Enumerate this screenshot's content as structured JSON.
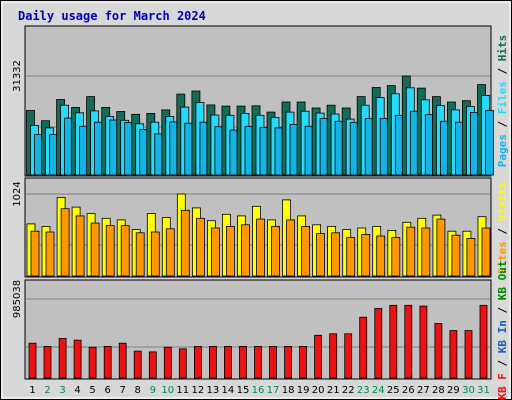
{
  "title": "Daily usage for March 2024",
  "colors": {
    "hits": "#136c58",
    "files": "#27d9fb",
    "pages": "#15b4e4",
    "visits": "#ffff00",
    "sites": "#ff9800",
    "kb": "#ee1111",
    "pane": "#c0c0c0",
    "frame": "#d8d8d8",
    "title": "#0000bb",
    "weekend": "#00884d"
  },
  "chart_data": [
    {
      "type": "bar",
      "title": "",
      "categories": [
        "1",
        "2",
        "3",
        "4",
        "5",
        "6",
        "7",
        "8",
        "9",
        "10",
        "11",
        "12",
        "13",
        "14",
        "15",
        "16",
        "17",
        "18",
        "19",
        "20",
        "21",
        "22",
        "23",
        "24",
        "25",
        "26",
        "27",
        "28",
        "29",
        "30",
        "31"
      ],
      "weekend_days": [
        "2",
        "3",
        "9",
        "10",
        "16",
        "17",
        "23",
        "24",
        "30",
        "31"
      ],
      "y_tick": "31332",
      "ymax": 31332,
      "ylabel_parts": [
        {
          "text": "Pages",
          "color": "#15b4e4"
        },
        {
          "text": " / ",
          "color": "#000000"
        },
        {
          "text": "Files",
          "color": "#27d9fb"
        },
        {
          "text": " / ",
          "color": "#000000"
        },
        {
          "text": "Hits",
          "color": "#136c58"
        }
      ],
      "series": [
        {
          "name": "Hits",
          "values": [
            20400,
            17200,
            23900,
            21400,
            24800,
            21400,
            20100,
            19200,
            19500,
            20600,
            25600,
            26600,
            22200,
            21800,
            21800,
            21900,
            19900,
            23100,
            23100,
            21200,
            22100,
            21200,
            24800,
            27700,
            28300,
            31332,
            27500,
            24800,
            23100,
            23500,
            28600
          ]
        },
        {
          "name": "Files",
          "values": [
            15700,
            14900,
            22100,
            19700,
            20300,
            18500,
            17300,
            16200,
            16700,
            18500,
            21500,
            22900,
            19000,
            18900,
            19500,
            18900,
            18200,
            19900,
            20200,
            19600,
            19300,
            17700,
            22100,
            24500,
            25700,
            27600,
            23800,
            22000,
            20600,
            21700,
            25200
          ]
        },
        {
          "name": "Pages",
          "values": [
            12800,
            12800,
            18000,
            15400,
            16700,
            17400,
            16600,
            14400,
            13000,
            16800,
            16400,
            16700,
            15300,
            14200,
            15400,
            15000,
            14900,
            16000,
            15400,
            17900,
            17000,
            16600,
            17900,
            17900,
            18900,
            20200,
            19100,
            17000,
            16700,
            19800,
            20400
          ]
        }
      ]
    },
    {
      "type": "bar",
      "title": "",
      "categories": [
        "1",
        "2",
        "3",
        "4",
        "5",
        "6",
        "7",
        "8",
        "9",
        "10",
        "11",
        "12",
        "13",
        "14",
        "15",
        "16",
        "17",
        "18",
        "19",
        "20",
        "21",
        "22",
        "23",
        "24",
        "25",
        "26",
        "27",
        "28",
        "29",
        "30",
        "31"
      ],
      "y_tick": "1024",
      "ymax": 1024,
      "ylabel_parts": [
        {
          "text": "Sites",
          "color": "#ff9800"
        },
        {
          "text": " / ",
          "color": "#000000"
        },
        {
          "text": "Visits",
          "color": "#ffff00"
        }
      ],
      "series": [
        {
          "name": "Visits",
          "values": [
            650,
            620,
            980,
            860,
            780,
            720,
            700,
            580,
            780,
            730,
            1024,
            850,
            690,
            770,
            750,
            870,
            700,
            950,
            750,
            640,
            620,
            580,
            600,
            620,
            570,
            670,
            720,
            760,
            560,
            560,
            740
          ]
        },
        {
          "name": "Sites",
          "values": [
            560,
            550,
            840,
            750,
            660,
            630,
            630,
            540,
            550,
            590,
            820,
            720,
            600,
            620,
            640,
            710,
            620,
            700,
            620,
            530,
            540,
            480,
            520,
            500,
            480,
            610,
            600,
            710,
            510,
            470,
            600
          ]
        }
      ]
    },
    {
      "type": "bar",
      "title": "",
      "categories": [
        "1",
        "2",
        "3",
        "4",
        "5",
        "6",
        "7",
        "8",
        "9",
        "10",
        "11",
        "12",
        "13",
        "14",
        "15",
        "16",
        "17",
        "18",
        "19",
        "20",
        "21",
        "22",
        "23",
        "24",
        "25",
        "26",
        "27",
        "28",
        "29",
        "30",
        "31"
      ],
      "y_tick": "985038",
      "ymax": 985038,
      "ylabel_parts": [
        {
          "text": "KB F",
          "color": "#ee1111"
        },
        {
          "text": " / ",
          "color": "#000000"
        },
        {
          "text": "KB In",
          "color": "#1560c0"
        },
        {
          "text": " / ",
          "color": "#000000"
        },
        {
          "text": "KB Out",
          "color": "#008800"
        }
      ],
      "series": [
        {
          "name": "KB F",
          "values": [
            440,
            400,
            500,
            480,
            390,
            400,
            440,
            340,
            330,
            390,
            370,
            400,
            400,
            400,
            400,
            400,
            400,
            400,
            400,
            540,
            560,
            560,
            770,
            880,
            920,
            920,
            910,
            690,
            600,
            600,
            920
          ]
        }
      ]
    }
  ]
}
